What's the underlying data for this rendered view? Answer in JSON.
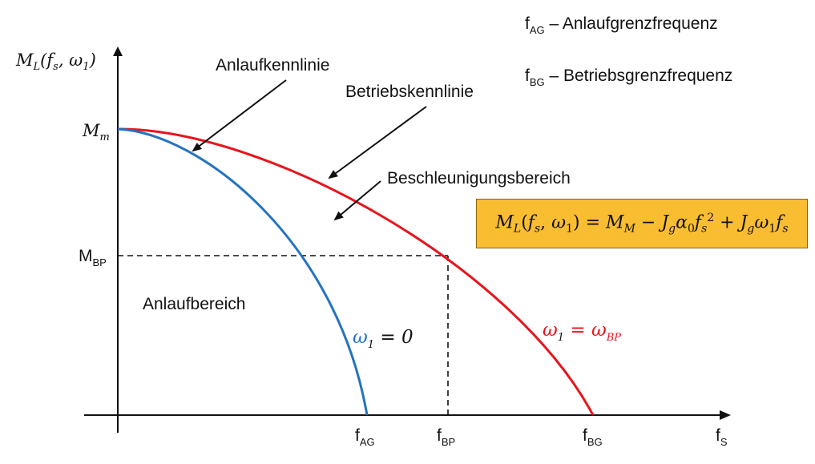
{
  "legend": {
    "fag": {
      "base": "f",
      "sub": "AG",
      "text": " – Anlaufgrenzfrequenz"
    },
    "fbg": {
      "base": "f",
      "sub": "BG",
      "text": " – Betriebsgrenzfrequenz"
    }
  },
  "yaxis": {
    "base": "M",
    "sub": "L",
    "args": "(f",
    "args_sub": "s",
    "args_rest": ", ω",
    "args_sub2": "1",
    "close": ")"
  },
  "xaxis": {
    "base": "f",
    "sub": "S"
  },
  "ticks": {
    "mm": {
      "base": "M",
      "sub": "m"
    },
    "mbp": {
      "base": "M",
      "sub": "BP"
    },
    "fag": {
      "base": "f",
      "sub": "AG"
    },
    "fbp": {
      "base": "f",
      "sub": "BP"
    },
    "fbg": {
      "base": "f",
      "sub": "BG"
    }
  },
  "labels": {
    "anlaufkennlinie": "Anlaufkennlinie",
    "betriebskennlinie": "Betriebskennlinie",
    "beschleunigungsbereich": "Beschleunigungsbereich",
    "anlaufbereich": "Anlaufbereich",
    "blue_curve": {
      "omega": "ω",
      "sub": "1",
      "rest": " = 0"
    },
    "red_curve": {
      "omega": "ω",
      "sub": "1",
      "rest": " = ω",
      "sub2": "BP"
    }
  },
  "formula": {
    "lhs": "M",
    "lhs_sub": "L",
    "lhs_args": "(f",
    "lhs_args_sub": "s",
    "lhs_args_rest": ", ω",
    "lhs_args_sub2": "1",
    "lhs_close": ")",
    "eq": " = ",
    "t1": "M",
    "t1_sub": "M",
    "op1": " − ",
    "t2": "J",
    "t2_sub": "g",
    "t2_b": "α",
    "t2_b_sub": "0",
    "t2_c": "f",
    "t2_c_sub": "s",
    "t2_c_sup": "2",
    "op2": " + ",
    "t3": "J",
    "t3_sub": "g",
    "t3_b": "ω",
    "t3_b_sub": "1",
    "t3_c": "f",
    "t3_c_sub": "s"
  },
  "colors": {
    "blue": "#2473c0",
    "red": "#e8141c",
    "box": "#f9bd32"
  }
}
